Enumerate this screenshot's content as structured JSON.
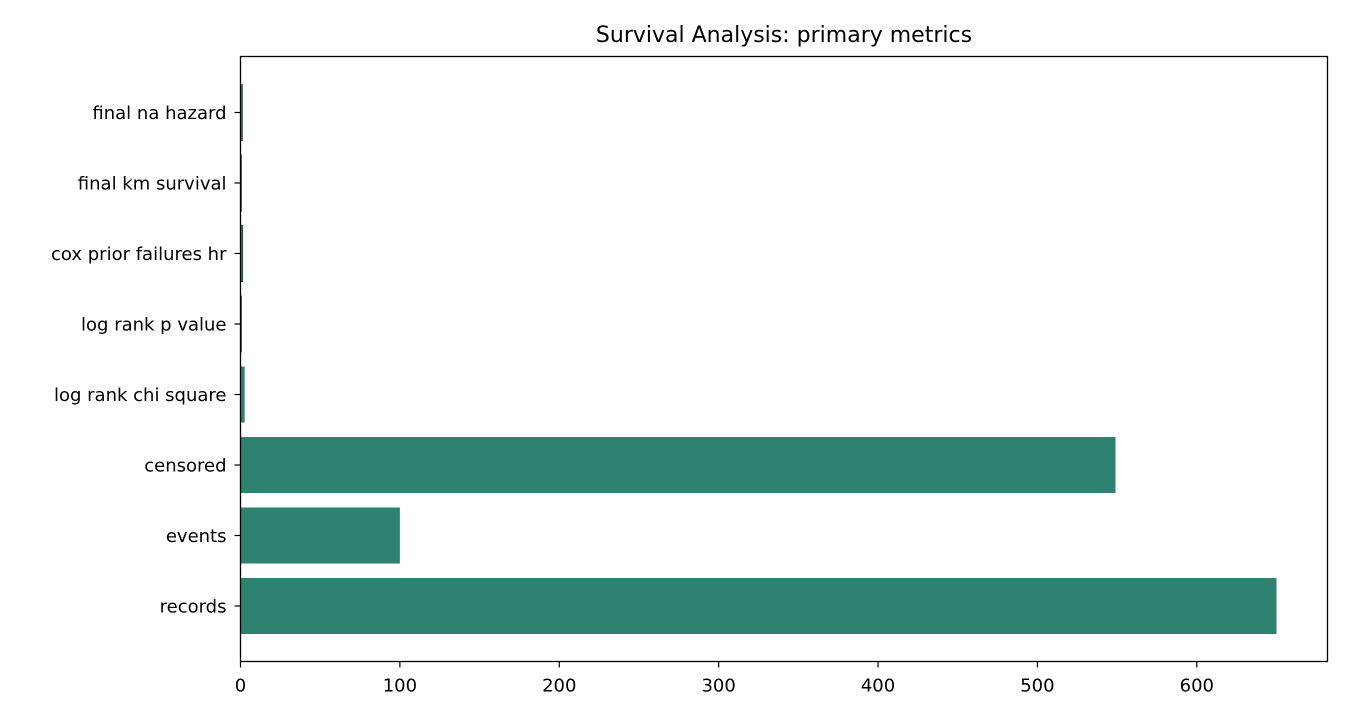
{
  "chart_data": {
    "type": "bar",
    "orientation": "horizontal",
    "title": "Survival Analysis: primary metrics",
    "xlabel": "",
    "ylabel": "",
    "categories": [
      "records",
      "events",
      "censored",
      "log rank chi square",
      "log rank p value",
      "cox prior failures hr",
      "final km survival",
      "final na hazard"
    ],
    "values": [
      650,
      100,
      549,
      2.6,
      0.11,
      1.3,
      0.02,
      1.1
    ],
    "xlim": [
      0,
      682
    ],
    "xticks": [
      0,
      100,
      200,
      300,
      400,
      500,
      600
    ],
    "grid": false,
    "legend": "none",
    "bar_color": "#2e8270",
    "edge_color": "#1f4f44"
  }
}
